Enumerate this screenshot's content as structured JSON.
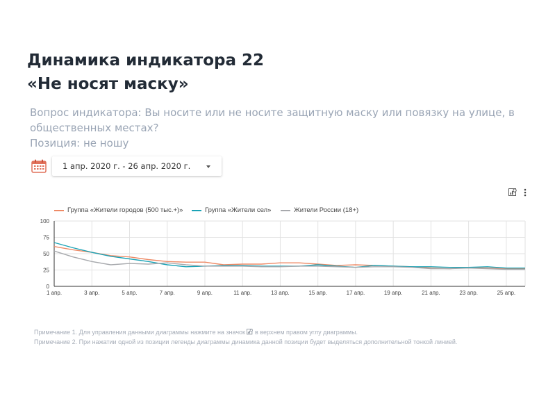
{
  "page": {
    "title_line1": "Динамика индикатора 22",
    "title_line2": "«Не носят маску»",
    "question": "Вопрос индикатора: Вы носите или не носите защитную маску или повязку на улице, в общественных местах?",
    "position": "Позиция: не ношу"
  },
  "date_filter": {
    "value": "1 апр. 2020 г. - 26 апр. 2020 г.",
    "icon": "calendar-icon"
  },
  "toolbar": {
    "icons": [
      "chart-settings-icon",
      "more-vertical-icon"
    ]
  },
  "notes": {
    "note1_before": "Примечание 1. Для управления данными диаграммы нажмите на значок",
    "note1_after": "в верхнем правом углу диаграммы.",
    "note2": "Примечание 2. При нажатии одной из позиции легенды диаграммы динамика данной позиции будет выделяться дополнительной тонкой линией."
  },
  "colors": {
    "cities": "#ee8a66",
    "villages": "#1ba3b6",
    "russia": "#a7a9ad",
    "grid": "#e2e2e2",
    "axis": "#333333"
  },
  "chart_data": {
    "type": "line",
    "x": [
      "1 апр.",
      "2 апр.",
      "3 апр.",
      "4 апр.",
      "5 апр.",
      "6 апр.",
      "7 апр.",
      "8 апр.",
      "9 апр.",
      "10 апр.",
      "11 апр.",
      "12 апр.",
      "13 апр.",
      "14 апр.",
      "15 апр.",
      "16 апр.",
      "17 апр.",
      "18 апр.",
      "19 апр.",
      "20 апр.",
      "21 апр.",
      "22 апр.",
      "23 апр.",
      "24 апр.",
      "25 апр.",
      "26 апр."
    ],
    "x_tick_labels": [
      "1 апр.",
      "3 апр.",
      "5 апр.",
      "7 апр.",
      "9 апр.",
      "11 апр.",
      "13 апр.",
      "15 апр.",
      "17 апр.",
      "19 апр.",
      "21 апр.",
      "23 апр.",
      "25 апр."
    ],
    "y_ticks": [
      0,
      25,
      50,
      75,
      100
    ],
    "ylim": [
      0,
      100
    ],
    "grid": true,
    "legend_position": "top-left",
    "series": [
      {
        "name": "Группа «Жители городов (500 тыс.+)»",
        "color_key": "cities",
        "values": [
          61,
          56,
          52,
          47,
          45,
          41,
          38,
          37,
          37,
          33,
          34,
          34,
          36,
          36,
          34,
          32,
          33,
          32,
          31,
          30,
          28,
          27,
          29,
          28,
          27,
          27
        ]
      },
      {
        "name": "Группа «Жители сел»",
        "color_key": "villages",
        "values": [
          67,
          59,
          52,
          46,
          42,
          38,
          33,
          30,
          31,
          32,
          32,
          31,
          31,
          31,
          33,
          31,
          29,
          32,
          31,
          30,
          30,
          29,
          29,
          30,
          28,
          28
        ]
      },
      {
        "name": "Жители России (18+)",
        "color_key": "russia",
        "values": [
          54,
          45,
          38,
          33,
          35,
          34,
          36,
          33,
          31,
          31,
          31,
          30,
          30,
          31,
          31,
          30,
          29,
          30,
          30,
          29,
          27,
          27,
          28,
          27,
          26,
          26
        ]
      }
    ]
  }
}
